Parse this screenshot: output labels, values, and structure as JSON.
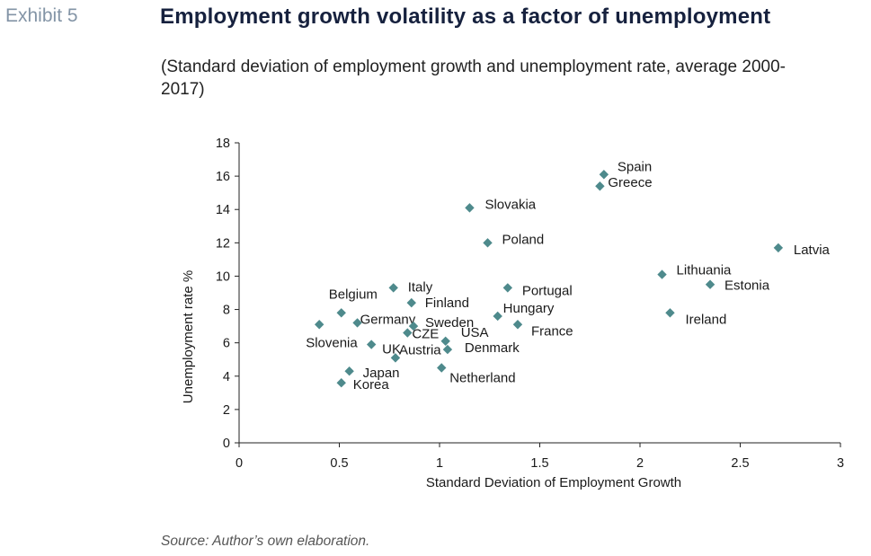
{
  "header": {
    "exhibit": "Exhibit 5",
    "title": "Employment growth volatility as a factor of unemployment",
    "subtitle": "(Standard deviation of employment growth and unemployment rate, average 2000-2017)"
  },
  "footer": {
    "source": "Source: Author’s own elaboration."
  },
  "colors": {
    "marker": "#4e8a8c",
    "axis": "#222222"
  },
  "chart_data": {
    "type": "scatter",
    "title": "",
    "xlabel": "Standard Deviation of Employment Growth",
    "ylabel": "Unemployment rate %",
    "xlim": [
      0,
      3
    ],
    "ylim": [
      0,
      18
    ],
    "x_ticks": [
      0,
      0.5,
      1,
      1.5,
      2,
      2.5,
      3
    ],
    "x_tick_labels": [
      "0",
      "0.5",
      "1",
      "1.5",
      "2",
      "2.5",
      "3"
    ],
    "y_ticks": [
      0,
      2,
      4,
      6,
      8,
      10,
      12,
      14,
      16,
      18
    ],
    "y_tick_labels": [
      "0",
      "2",
      "4",
      "6",
      "8",
      "10",
      "12",
      "14",
      "16",
      "18"
    ],
    "grid": false,
    "points": [
      {
        "label": "Spain",
        "x": 1.82,
        "y": 16.1
      },
      {
        "label": "Greece",
        "x": 1.8,
        "y": 15.4
      },
      {
        "label": "Slovakia",
        "x": 1.15,
        "y": 14.1
      },
      {
        "label": "Poland",
        "x": 1.24,
        "y": 12.0
      },
      {
        "label": "Latvia",
        "x": 2.69,
        "y": 11.7
      },
      {
        "label": "Lithuania",
        "x": 2.11,
        "y": 10.1
      },
      {
        "label": "Estonia",
        "x": 2.35,
        "y": 9.5
      },
      {
        "label": "Italy",
        "x": 0.77,
        "y": 9.3
      },
      {
        "label": "Portugal",
        "x": 1.34,
        "y": 9.3
      },
      {
        "label": "Finland",
        "x": 0.86,
        "y": 8.4
      },
      {
        "label": "Belgium",
        "x": 0.51,
        "y": 7.8
      },
      {
        "label": "Ireland",
        "x": 2.15,
        "y": 7.8
      },
      {
        "label": "Hungary",
        "x": 1.29,
        "y": 7.6
      },
      {
        "label": "Germany",
        "x": 0.59,
        "y": 7.2
      },
      {
        "label": "Slovenia",
        "x": 0.4,
        "y": 7.1
      },
      {
        "label": "France",
        "x": 1.39,
        "y": 7.1
      },
      {
        "label": "Sweden",
        "x": 0.87,
        "y": 7.0
      },
      {
        "label": "CZE",
        "x": 0.84,
        "y": 6.6
      },
      {
        "label": "USA",
        "x": 1.03,
        "y": 6.1
      },
      {
        "label": "UK",
        "x": 0.66,
        "y": 5.9
      },
      {
        "label": "Denmark",
        "x": 1.04,
        "y": 5.6
      },
      {
        "label": "Austria",
        "x": 0.78,
        "y": 5.1
      },
      {
        "label": "Netherland",
        "x": 1.01,
        "y": 4.5
      },
      {
        "label": "Japan",
        "x": 0.55,
        "y": 4.3
      },
      {
        "label": "Korea",
        "x": 0.51,
        "y": 3.6
      }
    ]
  }
}
